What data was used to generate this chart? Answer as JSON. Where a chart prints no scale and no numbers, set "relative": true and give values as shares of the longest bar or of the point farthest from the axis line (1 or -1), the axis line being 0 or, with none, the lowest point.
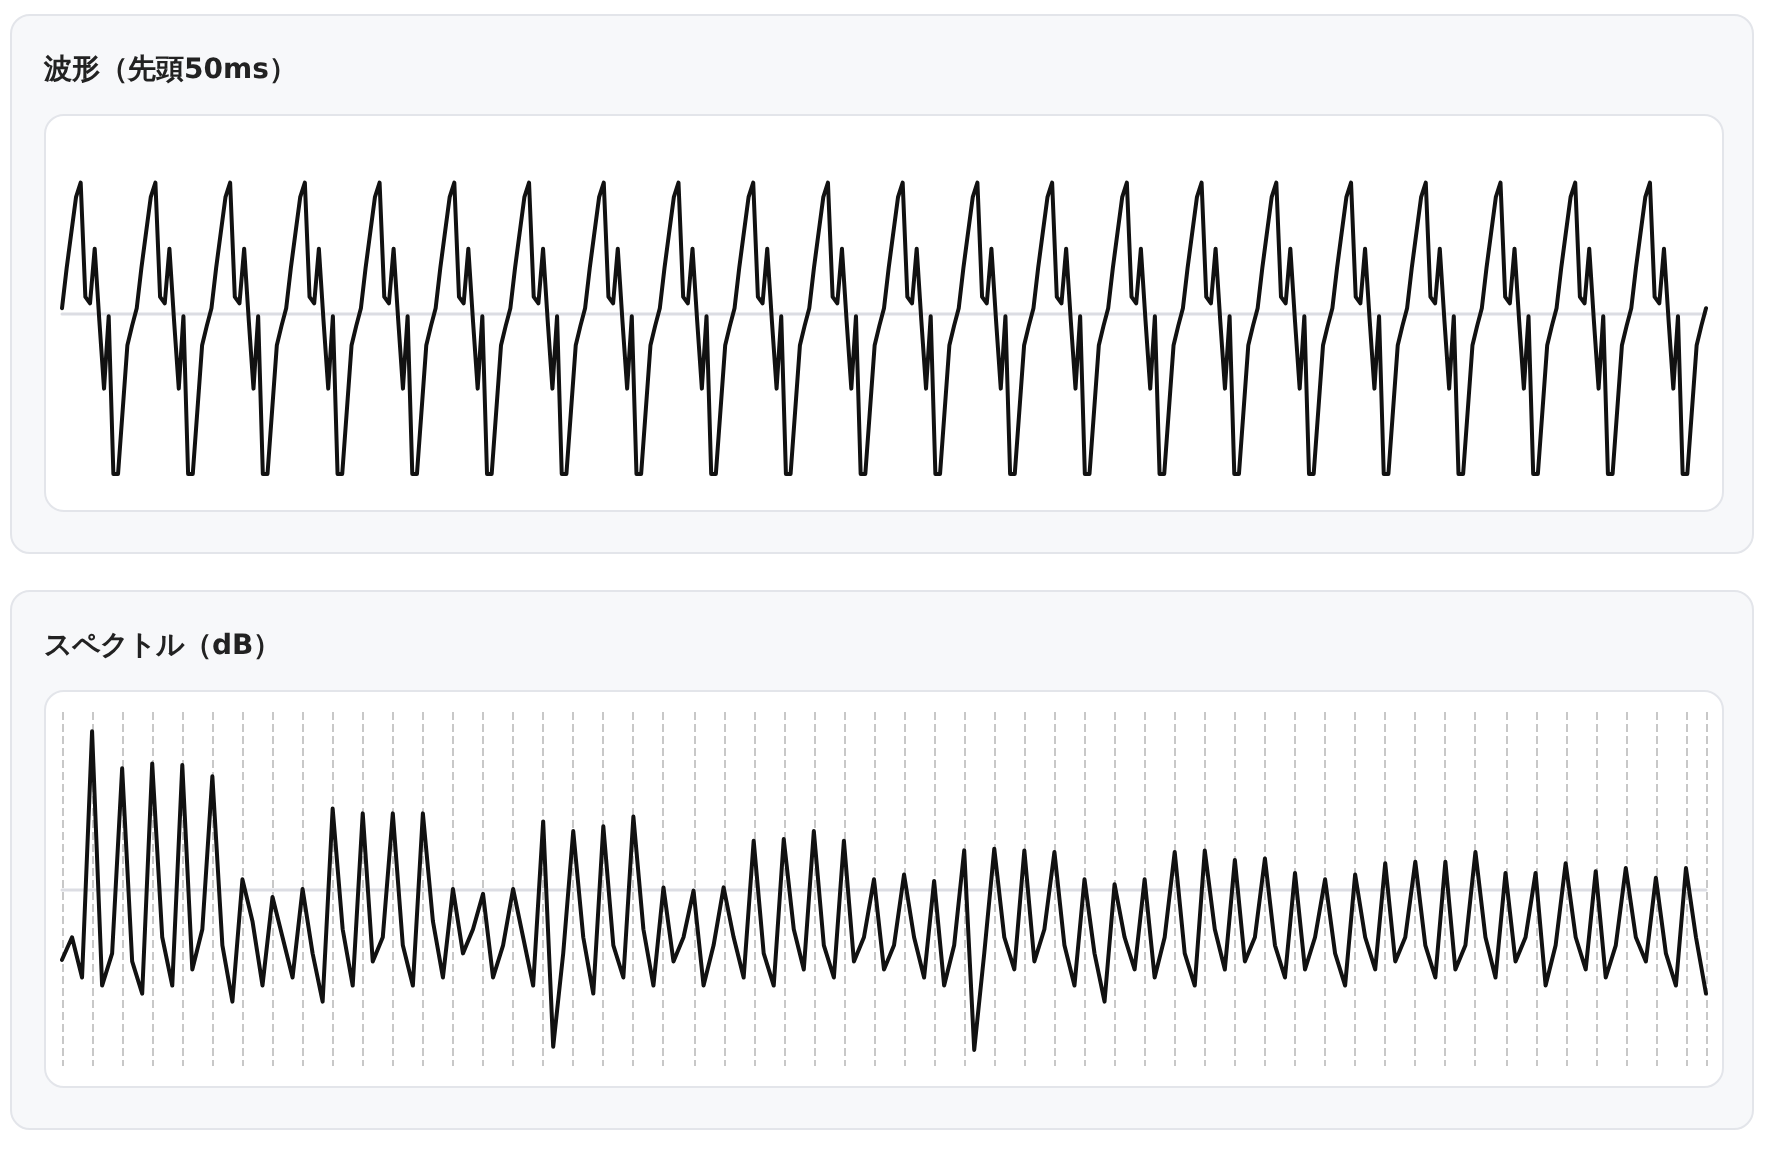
{
  "chart_data": [
    {
      "type": "line",
      "title": "波形（先頭50ms）",
      "relative": true,
      "marker": "none",
      "categories": [
        null,
        null,
        null,
        null,
        null,
        null,
        null,
        null,
        null,
        null,
        null,
        null,
        null,
        null,
        null,
        null,
        null,
        null,
        null,
        null,
        null,
        null,
        null,
        null,
        null,
        null,
        null,
        null,
        null,
        null,
        null,
        null,
        null,
        null,
        null,
        null,
        null,
        null,
        null,
        null,
        null,
        null,
        null,
        null,
        null,
        null,
        null,
        null,
        null,
        null,
        null,
        null,
        null,
        null,
        null,
        null,
        null,
        null,
        null,
        null,
        null,
        null,
        null,
        null,
        null,
        null,
        null,
        null,
        null,
        null,
        null,
        null,
        null,
        null,
        null,
        null,
        null,
        null,
        null,
        null,
        null,
        null,
        null,
        null,
        null,
        null,
        null,
        null,
        null,
        null,
        null,
        null,
        null,
        null,
        null,
        null,
        null,
        null,
        null,
        null,
        null,
        null,
        null,
        null,
        null,
        null,
        null,
        null,
        null,
        null,
        null,
        null,
        null,
        null,
        null,
        null,
        null,
        null,
        null,
        null,
        null,
        null,
        null,
        null,
        null,
        null,
        null,
        null,
        null,
        null,
        null,
        null,
        null,
        null,
        null,
        null,
        null,
        null,
        null,
        null,
        null,
        null,
        null,
        null,
        null,
        null,
        null,
        null,
        null,
        null,
        null,
        null,
        null,
        null,
        null,
        null,
        null,
        null,
        null,
        null,
        null,
        null,
        null,
        null,
        null,
        null,
        null,
        null,
        null,
        null,
        null,
        null,
        null,
        null,
        null,
        null,
        null,
        null,
        null,
        null,
        null,
        null,
        null,
        null,
        null,
        null,
        null,
        null,
        null,
        null,
        null,
        null,
        null,
        null,
        null,
        null,
        null,
        null,
        null,
        null,
        null,
        null,
        null,
        null,
        null,
        null,
        null,
        null,
        null,
        null,
        null,
        null,
        null,
        null,
        null,
        null,
        null,
        null,
        null,
        null,
        null,
        null,
        null,
        null,
        null,
        null,
        null,
        null,
        null,
        null,
        null,
        null,
        null,
        null,
        null,
        null,
        null,
        null,
        null,
        null,
        null,
        null,
        null,
        null,
        null,
        null,
        null,
        null,
        null,
        null,
        null,
        null,
        null,
        null,
        null,
        null,
        null,
        null,
        null,
        null,
        null,
        null,
        null,
        null,
        null,
        null,
        null,
        null,
        null,
        null,
        null,
        null,
        null,
        null,
        null,
        null,
        null,
        null,
        null,
        null,
        null,
        null,
        null,
        null,
        null,
        null,
        null,
        null,
        null,
        null,
        null,
        null,
        null,
        null,
        null,
        null,
        null,
        null,
        null,
        null,
        null,
        null,
        null,
        null,
        null,
        null,
        null,
        null,
        null,
        null,
        null,
        null,
        null,
        null,
        null,
        null,
        null,
        null,
        null,
        null,
        null,
        null,
        null,
        null,
        null,
        null,
        null,
        null,
        null,
        null,
        null,
        null,
        null,
        null,
        null,
        null,
        null,
        null,
        null,
        null,
        null,
        null,
        null,
        null,
        null,
        null,
        null,
        null,
        null,
        null,
        null,
        null,
        null
      ],
      "series": [
        {
          "color": "#111111",
          "values": [
            0.03,
            0.28,
            0.5,
            0.72,
            0.81,
            0.1,
            0.06,
            0.4,
            -0.05,
            -0.47,
            -0.02,
            -1,
            -1,
            -0.6,
            -0.2,
            -0.08,
            0.03,
            0.28,
            0.5,
            0.72,
            0.81,
            0.1,
            0.06,
            0.4,
            -0.05,
            -0.47,
            -0.02,
            -1,
            -1,
            -0.6,
            -0.2,
            -0.08,
            0.03,
            0.28,
            0.5,
            0.72,
            0.81,
            0.1,
            0.06,
            0.4,
            -0.05,
            -0.47,
            -0.02,
            -1,
            -1,
            -0.6,
            -0.2,
            -0.08,
            0.03,
            0.28,
            0.5,
            0.72,
            0.81,
            0.1,
            0.06,
            0.4,
            -0.05,
            -0.47,
            -0.02,
            -1,
            -1,
            -0.6,
            -0.2,
            -0.08,
            0.03,
            0.28,
            0.5,
            0.72,
            0.81,
            0.1,
            0.06,
            0.4,
            -0.05,
            -0.47,
            -0.02,
            -1,
            -1,
            -0.6,
            -0.2,
            -0.08,
            0.03,
            0.28,
            0.5,
            0.72,
            0.81,
            0.1,
            0.06,
            0.4,
            -0.05,
            -0.47,
            -0.02,
            -1,
            -1,
            -0.6,
            -0.2,
            -0.08,
            0.03,
            0.28,
            0.5,
            0.72,
            0.81,
            0.1,
            0.06,
            0.4,
            -0.05,
            -0.47,
            -0.02,
            -1,
            -1,
            -0.6,
            -0.2,
            -0.08,
            0.03,
            0.28,
            0.5,
            0.72,
            0.81,
            0.1,
            0.06,
            0.4,
            -0.05,
            -0.47,
            -0.02,
            -1,
            -1,
            -0.6,
            -0.2,
            -0.08,
            0.03,
            0.28,
            0.5,
            0.72,
            0.81,
            0.1,
            0.06,
            0.4,
            -0.05,
            -0.47,
            -0.02,
            -1,
            -1,
            -0.6,
            -0.2,
            -0.08,
            0.03,
            0.28,
            0.5,
            0.72,
            0.81,
            0.1,
            0.06,
            0.4,
            -0.05,
            -0.47,
            -0.02,
            -1,
            -1,
            -0.6,
            -0.2,
            -0.08,
            0.03,
            0.28,
            0.5,
            0.72,
            0.81,
            0.1,
            0.06,
            0.4,
            -0.05,
            -0.47,
            -0.02,
            -1,
            -1,
            -0.6,
            -0.2,
            -0.08,
            0.03,
            0.28,
            0.5,
            0.72,
            0.81,
            0.1,
            0.06,
            0.4,
            -0.05,
            -0.47,
            -0.02,
            -1,
            -1,
            -0.6,
            -0.2,
            -0.08,
            0.03,
            0.28,
            0.5,
            0.72,
            0.81,
            0.1,
            0.06,
            0.4,
            -0.05,
            -0.47,
            -0.02,
            -1,
            -1,
            -0.6,
            -0.2,
            -0.08,
            0.03,
            0.28,
            0.5,
            0.72,
            0.81,
            0.1,
            0.06,
            0.4,
            -0.05,
            -0.47,
            -0.02,
            -1,
            -1,
            -0.6,
            -0.2,
            -0.08,
            0.03,
            0.28,
            0.5,
            0.72,
            0.81,
            0.1,
            0.06,
            0.4,
            -0.05,
            -0.47,
            -0.02,
            -1,
            -1,
            -0.6,
            -0.2,
            -0.08,
            0.03,
            0.28,
            0.5,
            0.72,
            0.81,
            0.1,
            0.06,
            0.4,
            -0.05,
            -0.47,
            -0.02,
            -1,
            -1,
            -0.6,
            -0.2,
            -0.08,
            0.03,
            0.28,
            0.5,
            0.72,
            0.81,
            0.1,
            0.06,
            0.4,
            -0.05,
            -0.47,
            -0.02,
            -1,
            -1,
            -0.6,
            -0.2,
            -0.08,
            0.03,
            0.28,
            0.5,
            0.72,
            0.81,
            0.1,
            0.06,
            0.4,
            -0.05,
            -0.47,
            -0.02,
            -1,
            -1,
            -0.6,
            -0.2,
            -0.08,
            0.03,
            0.28,
            0.5,
            0.72,
            0.81,
            0.1,
            0.06,
            0.4,
            -0.05,
            -0.47,
            -0.02,
            -1,
            -1,
            -0.6,
            -0.2,
            -0.08,
            0.03,
            0.28,
            0.5,
            0.72,
            0.81,
            0.1,
            0.06,
            0.4,
            -0.05,
            -0.47,
            -0.02,
            -1,
            -1,
            -0.6,
            -0.2,
            -0.08,
            0.03,
            0.28,
            0.5,
            0.72,
            0.81,
            0.1,
            0.06,
            0.4,
            -0.05,
            -0.47,
            -0.02,
            -1,
            -1,
            -0.6,
            -0.2,
            -0.08,
            0.03,
            0.28,
            0.5,
            0.72,
            0.81,
            0.1,
            0.06,
            0.4,
            -0.05,
            -0.47,
            -0.02,
            -1,
            -1,
            -0.6,
            -0.2,
            -0.08,
            0.03
          ]
        }
      ]
    },
    {
      "type": "line",
      "title": "スペクトル（dB）",
      "relative": true,
      "marker": "none",
      "grid": "x",
      "categories": [
        null,
        null,
        null,
        null,
        null,
        null,
        null,
        null,
        null,
        null,
        null,
        null,
        null,
        null,
        null,
        null,
        null,
        null,
        null,
        null,
        null,
        null,
        null,
        null,
        null,
        null,
        null,
        null,
        null,
        null,
        null,
        null,
        null,
        null,
        null,
        null,
        null,
        null,
        null,
        null,
        null,
        null,
        null,
        null,
        null,
        null,
        null,
        null,
        null,
        null,
        null,
        null,
        null,
        null,
        null,
        null,
        null,
        null,
        null,
        null,
        null,
        null,
        null,
        null,
        null,
        null,
        null,
        null,
        null,
        null,
        null,
        null,
        null,
        null,
        null,
        null,
        null,
        null,
        null,
        null,
        null,
        null,
        null,
        null,
        null,
        null,
        null,
        null,
        null,
        null,
        null,
        null,
        null,
        null,
        null,
        null,
        null,
        null,
        null,
        null,
        null,
        null,
        null,
        null,
        null,
        null,
        null,
        null,
        null,
        null,
        null,
        null,
        null,
        null,
        null,
        null,
        null,
        null,
        null,
        null,
        null,
        null,
        null,
        null,
        null,
        null,
        null,
        null,
        null,
        null,
        null,
        null,
        null,
        null,
        null,
        null,
        null,
        null,
        null,
        null,
        null,
        null,
        null,
        null,
        null,
        null,
        null,
        null,
        null,
        null,
        null,
        null,
        null,
        null,
        null,
        null,
        null,
        null,
        null,
        null,
        null,
        null,
        null,
        null,
        null
      ],
      "series": [
        {
          "color": "#111111",
          "values": [
            -0.44,
            -0.3,
            -0.55,
            0.98,
            -0.6,
            -0.4,
            0.75,
            -0.45,
            -0.65,
            0.78,
            -0.3,
            -0.6,
            0.77,
            -0.5,
            -0.25,
            0.7,
            -0.35,
            -0.7,
            0.06,
            -0.2,
            -0.6,
            -0.05,
            -0.3,
            -0.55,
            0,
            -0.4,
            -0.7,
            0.5,
            -0.25,
            -0.6,
            0.47,
            -0.45,
            -0.3,
            0.47,
            -0.35,
            -0.6,
            0.47,
            -0.2,
            -0.55,
            0,
            -0.4,
            -0.25,
            -0.03,
            -0.55,
            -0.35,
            0,
            -0.3,
            -0.6,
            0.42,
            -0.98,
            -0.4,
            0.36,
            -0.3,
            -0.65,
            0.39,
            -0.35,
            -0.55,
            0.45,
            -0.25,
            -0.6,
            0.01,
            -0.45,
            -0.3,
            -0.01,
            -0.6,
            -0.35,
            0.01,
            -0.3,
            -0.55,
            0.3,
            -0.4,
            -0.6,
            0.31,
            -0.25,
            -0.5,
            0.36,
            -0.35,
            -0.55,
            0.3,
            -0.45,
            -0.3,
            0.06,
            -0.5,
            -0.35,
            0.09,
            -0.3,
            -0.55,
            0.05,
            -0.6,
            -0.35,
            0.24,
            -1,
            -0.4,
            0.25,
            -0.3,
            -0.5,
            0.24,
            -0.45,
            -0.25,
            0.23,
            -0.35,
            -0.6,
            0.06,
            -0.4,
            -0.7,
            0.03,
            -0.3,
            -0.5,
            0.06,
            -0.55,
            -0.3,
            0.23,
            -0.4,
            -0.6,
            0.24,
            -0.25,
            -0.5,
            0.18,
            -0.45,
            -0.3,
            0.19,
            -0.35,
            -0.55,
            0.1,
            -0.5,
            -0.3,
            0.06,
            -0.4,
            -0.6,
            0.09,
            -0.3,
            -0.5,
            0.16,
            -0.45,
            -0.3,
            0.17,
            -0.35,
            -0.55,
            0.17,
            -0.5,
            -0.35,
            0.23,
            -0.3,
            -0.55,
            0.1,
            -0.45,
            -0.3,
            0.1,
            -0.6,
            -0.35,
            0.16,
            -0.3,
            -0.5,
            0.11,
            -0.55,
            -0.35,
            0.13,
            -0.3,
            -0.45,
            0.07,
            -0.4,
            -0.6,
            0.13,
            -0.3,
            -0.65
          ]
        }
      ]
    }
  ]
}
